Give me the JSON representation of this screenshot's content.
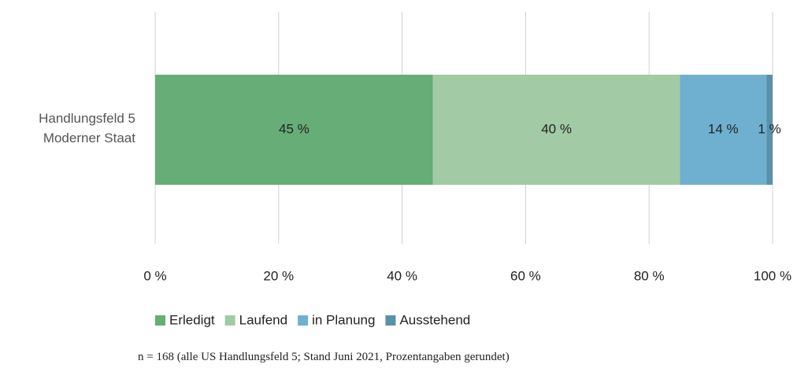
{
  "chart_data": {
    "type": "stacked-bar-horizontal",
    "categories": [
      "Handlungsfeld 5\nModerner Staat"
    ],
    "series": [
      {
        "name": "Erledigt",
        "color": "#66ad78",
        "values": [
          45
        ],
        "value_labels": [
          "45 %"
        ]
      },
      {
        "name": "Laufend",
        "color": "#a1caa5",
        "values": [
          40
        ],
        "value_labels": [
          "40 %"
        ]
      },
      {
        "name": "in Planung",
        "color": "#6fb0d0",
        "values": [
          14
        ],
        "value_labels": [
          "14 %"
        ]
      },
      {
        "name": "Ausstehend",
        "color": "#5b91a8",
        "values": [
          1
        ],
        "value_labels": [
          "1 %"
        ]
      }
    ],
    "xlim": [
      0,
      100
    ],
    "xticks": [
      {
        "value": 0,
        "label": "0 %"
      },
      {
        "value": 20,
        "label": "20 %"
      },
      {
        "value": 40,
        "label": "40 %"
      },
      {
        "value": 60,
        "label": "60 %"
      },
      {
        "value": 80,
        "label": "80 %"
      },
      {
        "value": 100,
        "label": "100 %"
      }
    ],
    "grid": true,
    "legend": "bottom",
    "note": "n = 168 (alle US Handlungsfeld 5; Stand Juni 2021, Prozentangaben gerundet)"
  }
}
